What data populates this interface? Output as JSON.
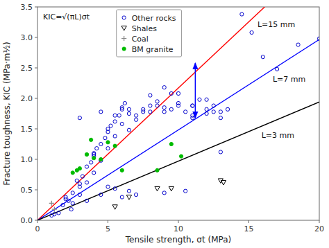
{
  "chart_data": {
    "type": "scatter",
    "xlabel": "Tensile strength, σt (MPa)",
    "ylabel": "Fracture toughness, KIC (MPa·m½)",
    "xlim": [
      0,
      20
    ],
    "ylim": [
      0,
      3.5
    ],
    "xticks": [
      0,
      5,
      10,
      15,
      20
    ],
    "yticks": [
      {
        "value": 0.0,
        "label": "0.0"
      },
      0.5,
      {
        "value": 1.0,
        "label": "1.0"
      },
      1.5,
      {
        "value": 2.0,
        "label": "2.0"
      },
      2.5,
      {
        "value": 3.0,
        "label": "3.0"
      },
      3.5
    ],
    "grid": false,
    "legend": "top",
    "annotations": [
      "KIC=√(πL)σt"
    ],
    "arrows": [
      {
        "x": [
          11.2,
          11.2
        ],
        "y": [
          1.68,
          2.58
        ],
        "color": "blue"
      }
    ],
    "series": [
      {
        "name": "L=15 mm",
        "type": "line",
        "color": "red",
        "x": [
          0,
          16.123
        ],
        "values": [
          0,
          3.5
        ]
      },
      {
        "name": "L=7 mm",
        "type": "line",
        "color": "blue",
        "x": [
          0,
          20
        ],
        "values": [
          0,
          2.965883
        ]
      },
      {
        "name": "L=3 mm",
        "type": "line",
        "color": "black",
        "x": [
          0,
          20
        ],
        "values": [
          0,
          1.941626
        ]
      },
      {
        "name": "Other rocks",
        "type": "scatter",
        "color": "#0000cc",
        "marker": "circle-open",
        "x": [
          1.0,
          1.5,
          1.8,
          2.0,
          2.2,
          2.4,
          2.5,
          2.8,
          3.0,
          3.0,
          3.2,
          3.5,
          3.5,
          3.8,
          4.0,
          4.0,
          4.2,
          4.5,
          4.5,
          4.8,
          5.0,
          5.0,
          5.2,
          5.5,
          5.5,
          5.8,
          6.0,
          6.0,
          6.2,
          6.5,
          6.5,
          7.0,
          7.5,
          8.0,
          8.0,
          8.5,
          9.0,
          9.0,
          9.5,
          10.0,
          10.0,
          10.5,
          11.0,
          11.0,
          11.5,
          12.0,
          12.0,
          12.5,
          13.0,
          14.5,
          15.2,
          16.0,
          17.0,
          18.5,
          20.0,
          3.0,
          4.5,
          5.5,
          6.5,
          7.5,
          8.5,
          9.5,
          11.0,
          12.5,
          13.5,
          4.0,
          5.0,
          6.0,
          7.0,
          9.0,
          10.5,
          13.0,
          2.5,
          3.5,
          4.5,
          5.5,
          6.5,
          7.0,
          8.0,
          9.0,
          10.0,
          11.0,
          12.0,
          13.0,
          1.2,
          2.0,
          3.0,
          4.0,
          5.0,
          6.0
        ],
        "values": [
          0.08,
          0.12,
          0.25,
          0.38,
          0.32,
          0.18,
          0.45,
          0.65,
          0.55,
          0.42,
          0.72,
          0.88,
          0.62,
          0.95,
          1.05,
          0.78,
          1.18,
          1.25,
          0.98,
          1.35,
          1.45,
          1.18,
          1.55,
          1.62,
          1.38,
          1.72,
          1.82,
          1.58,
          1.92,
          1.48,
          1.75,
          1.72,
          1.82,
          1.88,
          2.05,
          1.95,
          1.78,
          2.18,
          2.08,
          1.88,
          2.08,
          1.78,
          1.68,
          1.88,
          1.98,
          1.82,
          1.98,
          1.88,
          1.78,
          3.38,
          3.08,
          2.68,
          2.48,
          2.88,
          2.98,
          1.68,
          1.78,
          1.72,
          1.82,
          1.78,
          1.88,
          1.82,
          1.72,
          1.78,
          1.82,
          1.08,
          0.55,
          0.38,
          0.42,
          0.45,
          0.48,
          1.12,
          0.28,
          0.32,
          0.42,
          0.52,
          0.48,
          1.65,
          1.78,
          1.85,
          1.92,
          1.88,
          1.75,
          1.68,
          0.1,
          0.35,
          0.6,
          1.1,
          1.5,
          1.85
        ]
      },
      {
        "name": "Shales",
        "type": "scatter",
        "color": "#000000",
        "marker": "triangle-down-open",
        "x": [
          5.5,
          6.5,
          8.5,
          9.5,
          13.0,
          13.2
        ],
        "values": [
          0.22,
          0.38,
          0.52,
          0.52,
          0.65,
          0.62
        ]
      },
      {
        "name": "Coal",
        "type": "scatter",
        "color": "#888888",
        "marker": "plus",
        "x": [
          1.0,
          1.2
        ],
        "values": [
          0.28,
          0.18
        ]
      },
      {
        "name": "BM granite",
        "type": "scatter",
        "color": "#00bb00",
        "marker": "circle",
        "x": [
          2.5,
          2.8,
          3.0,
          3.5,
          3.8,
          4.0,
          4.5,
          5.0,
          5.5,
          6.0,
          8.5,
          9.5,
          10.2
        ],
        "values": [
          0.78,
          0.82,
          0.85,
          1.08,
          1.32,
          1.02,
          1.0,
          1.28,
          1.22,
          0.82,
          0.82,
          1.25,
          1.05
        ]
      }
    ]
  }
}
